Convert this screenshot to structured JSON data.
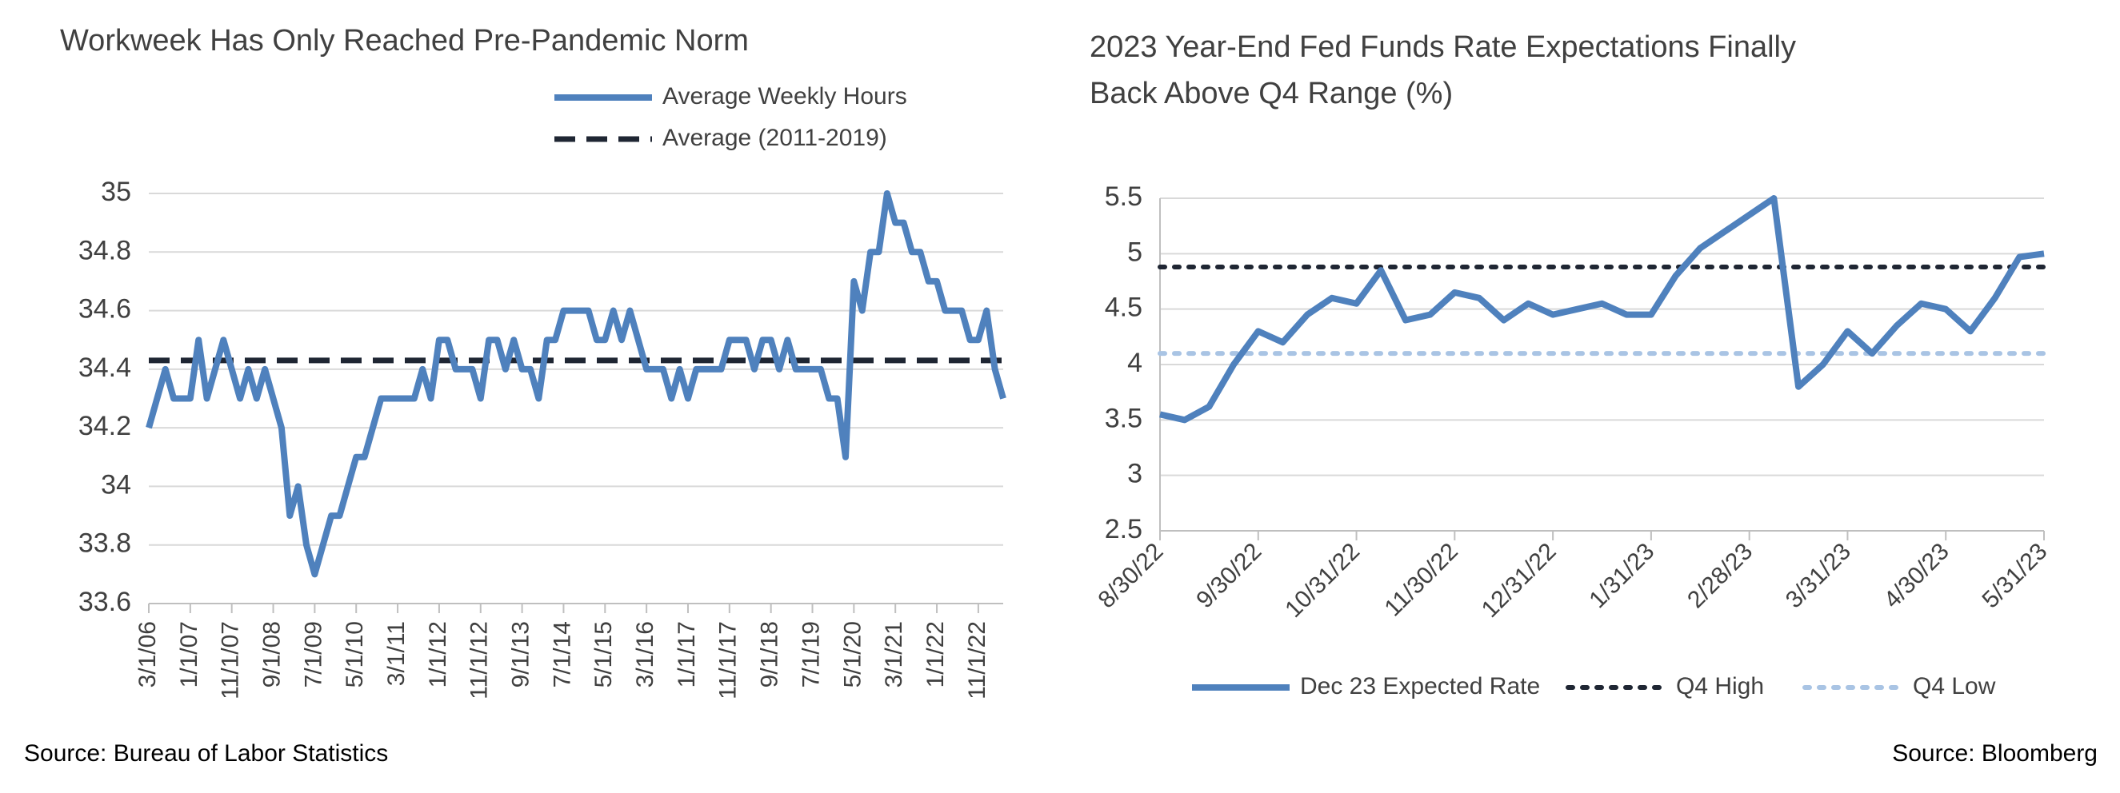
{
  "chart_data": [
    {
      "type": "line",
      "title": "Workweek Has Only Reached Pre-Pandemic Norm",
      "source": "Source: Bureau of Labor Statistics",
      "categories": [
        "3/1/06",
        null,
        null,
        null,
        null,
        "1/1/07",
        null,
        null,
        null,
        null,
        "11/1/07",
        null,
        null,
        null,
        null,
        "9/1/08",
        null,
        null,
        null,
        null,
        "7/1/09",
        null,
        null,
        null,
        null,
        "5/1/10",
        null,
        null,
        null,
        null,
        "3/1/11",
        null,
        null,
        null,
        null,
        "1/1/12",
        null,
        null,
        null,
        null,
        "11/1/12",
        null,
        null,
        null,
        null,
        "9/1/13",
        null,
        null,
        null,
        null,
        "7/1/14",
        null,
        null,
        null,
        null,
        "5/1/15",
        null,
        null,
        null,
        null,
        "3/1/16",
        null,
        null,
        null,
        null,
        "1/1/17",
        null,
        null,
        null,
        null,
        "11/1/17",
        null,
        null,
        null,
        null,
        "9/1/18",
        null,
        null,
        null,
        null,
        "7/1/19",
        null,
        null,
        null,
        null,
        "5/1/20",
        null,
        null,
        null,
        null,
        "3/1/21",
        null,
        null,
        null,
        null,
        "1/1/22",
        null,
        null,
        null,
        null,
        "11/1/22",
        null,
        null,
        null
      ],
      "series": [
        {
          "name": "Average Weekly Hours",
          "color": "#4f81bd",
          "values": [
            34.2,
            34.3,
            34.4,
            34.3,
            34.3,
            34.3,
            34.5,
            34.3,
            34.4,
            34.5,
            34.4,
            34.3,
            34.4,
            34.3,
            34.4,
            34.3,
            34.2,
            33.9,
            34.0,
            33.8,
            33.7,
            33.8,
            33.9,
            33.9,
            34.0,
            34.1,
            34.1,
            34.2,
            34.3,
            34.3,
            34.3,
            34.3,
            34.3,
            34.4,
            34.3,
            34.5,
            34.5,
            34.4,
            34.4,
            34.4,
            34.3,
            34.5,
            34.5,
            34.4,
            34.5,
            34.4,
            34.4,
            34.3,
            34.5,
            34.5,
            34.6,
            34.6,
            34.6,
            34.6,
            34.5,
            34.5,
            34.6,
            34.5,
            34.6,
            34.5,
            34.4,
            34.4,
            34.4,
            34.3,
            34.4,
            34.3,
            34.4,
            34.4,
            34.4,
            34.4,
            34.5,
            34.5,
            34.5,
            34.4,
            34.5,
            34.5,
            34.4,
            34.5,
            34.4,
            34.4,
            34.4,
            34.4,
            34.3,
            34.3,
            34.1,
            34.7,
            34.6,
            34.8,
            34.8,
            35.0,
            34.9,
            34.9,
            34.8,
            34.8,
            34.7,
            34.7,
            34.6,
            34.6,
            34.6,
            34.5,
            34.5,
            34.6,
            34.4,
            34.3
          ]
        }
      ],
      "reference_lines": [
        {
          "name": "Average (2011-2019)",
          "value": 34.43,
          "color": "#1f2633",
          "style": "dashed"
        }
      ],
      "ylim": [
        33.6,
        35
      ],
      "yticks": [
        33.6,
        33.8,
        34,
        34.2,
        34.4,
        34.6,
        34.8,
        35
      ],
      "grid": true,
      "legend": "top-right"
    },
    {
      "type": "line",
      "title": "2023 Year-End Fed Funds Rate Expectations Finally Back Above Q4 Range (%)",
      "source": "Source: Bloomberg",
      "categories": [
        "8/30/22",
        null,
        null,
        null,
        "9/30/22",
        null,
        null,
        null,
        "10/31/22",
        null,
        null,
        null,
        "11/30/22",
        null,
        null,
        null,
        "12/31/22",
        null,
        null,
        null,
        "1/31/23",
        null,
        null,
        null,
        "2/28/23",
        null,
        null,
        null,
        "3/31/23",
        null,
        null,
        null,
        "4/30/23",
        null,
        null,
        null,
        "5/31/23"
      ],
      "series": [
        {
          "name": "Dec 23 Expected Rate",
          "color": "#4f81bd",
          "values": [
            3.55,
            3.5,
            3.62,
            4.0,
            4.3,
            4.2,
            4.45,
            4.6,
            4.55,
            4.85,
            4.4,
            4.45,
            4.65,
            4.6,
            4.4,
            4.55,
            4.45,
            4.5,
            4.55,
            4.45,
            4.45,
            4.8,
            5.05,
            5.2,
            5.35,
            5.5,
            3.8,
            4.0,
            4.3,
            4.1,
            4.35,
            4.55,
            4.5,
            4.3,
            4.6,
            4.97,
            5.0
          ]
        }
      ],
      "reference_lines": [
        {
          "name": "Q4 High",
          "value": 4.88,
          "color": "#1f2633",
          "style": "dotted"
        },
        {
          "name": "Q4 Low",
          "value": 4.1,
          "color": "#a9c4e4",
          "style": "dotted"
        }
      ],
      "ylim": [
        2.5,
        5.5
      ],
      "yticks": [
        2.5,
        3,
        3.5,
        4,
        4.5,
        5,
        5.5
      ],
      "grid": true,
      "legend": "bottom"
    }
  ]
}
